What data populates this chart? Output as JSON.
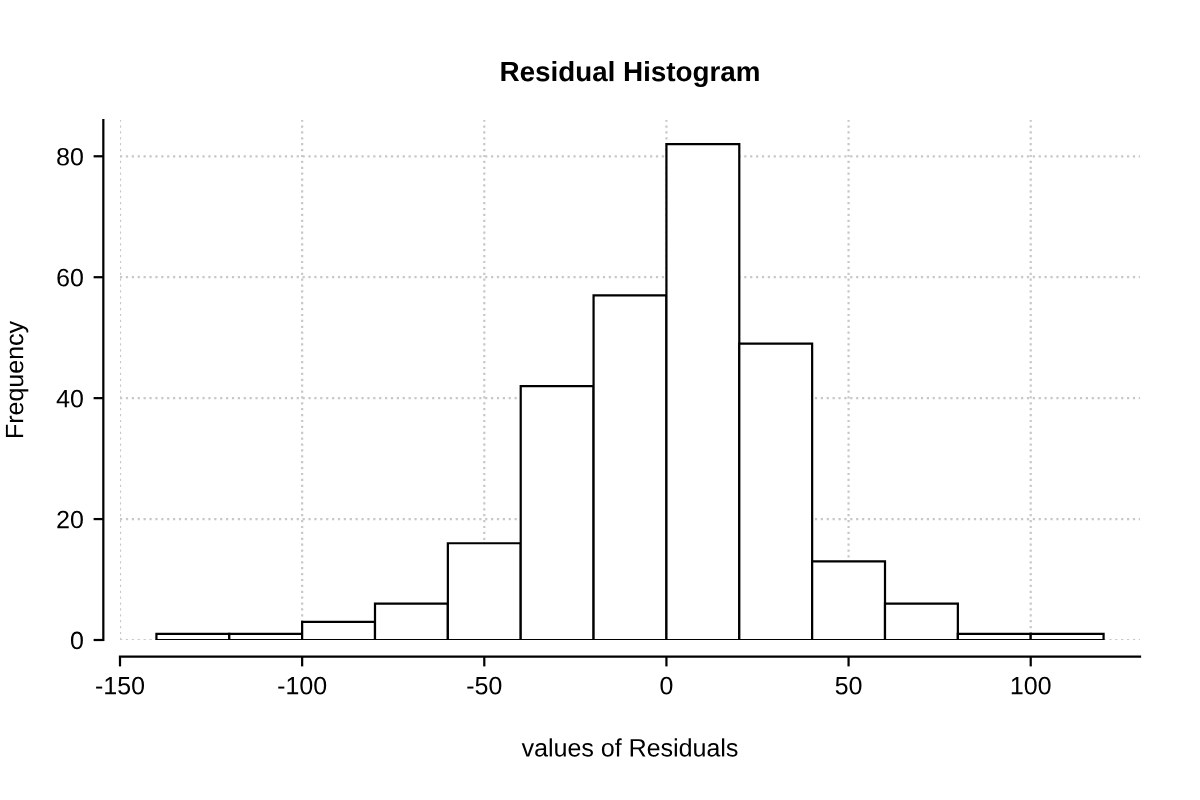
{
  "chart_data": {
    "type": "histogram",
    "title": "Residual Histogram",
    "xlabel": "values of Residuals",
    "ylabel": "Frequency",
    "bins": [
      -140,
      -120,
      -100,
      -80,
      -60,
      -40,
      -20,
      0,
      20,
      40,
      60,
      80,
      100,
      120
    ],
    "values": [
      1,
      1,
      3,
      6,
      16,
      42,
      57,
      82,
      49,
      13,
      6,
      1,
      1
    ],
    "color": "#ffffff",
    "xlim": [
      -150,
      130
    ],
    "ylim": [
      0,
      86
    ],
    "xticks": [
      -150,
      -100,
      -50,
      0,
      50,
      100
    ],
    "yticks": [
      0,
      20,
      40,
      60,
      80
    ],
    "grid": true
  }
}
